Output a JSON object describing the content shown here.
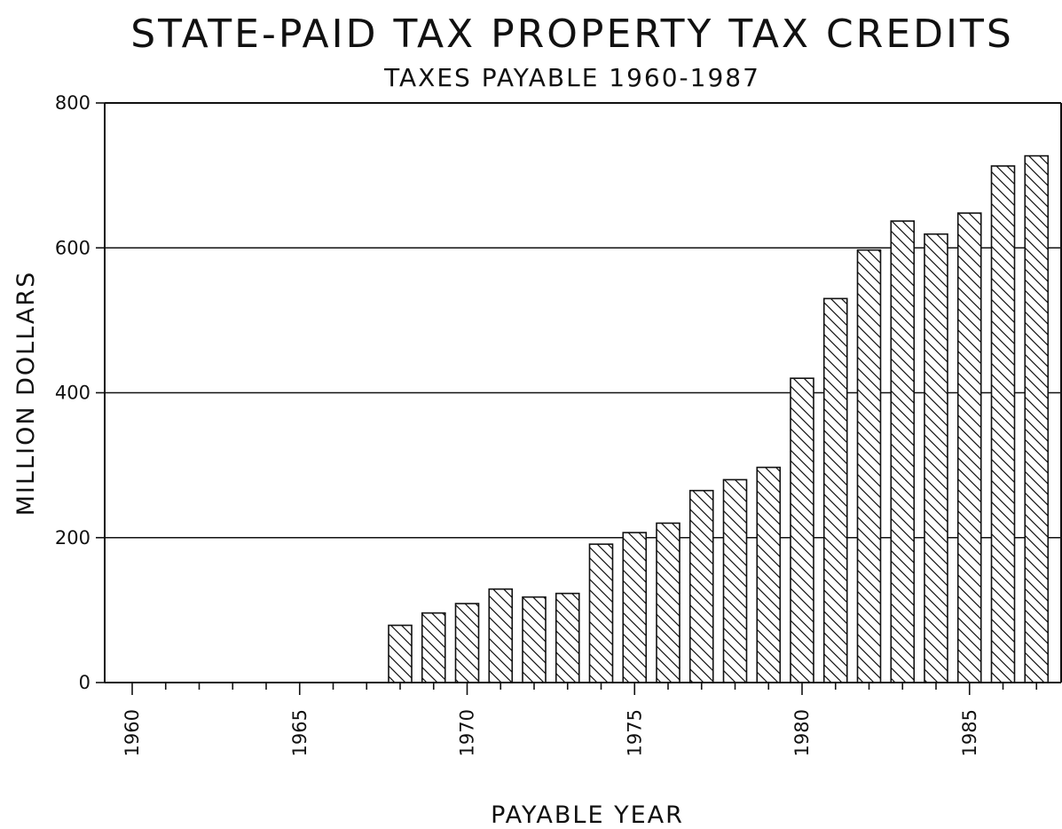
{
  "chart_data": {
    "type": "bar",
    "title": "STATE-PAID TAX PROPERTY TAX CREDITS",
    "subtitle": "TAXES PAYABLE 1960-1987",
    "xlabel": "PAYABLE YEAR",
    "ylabel": "MILLION DOLLARS",
    "ylim": [
      0,
      800
    ],
    "yticks": [
      0,
      200,
      400,
      600,
      800
    ],
    "xlim": [
      1960,
      1987
    ],
    "xticks": [
      1960,
      1965,
      1970,
      1975,
      1980,
      1985
    ],
    "grid": true,
    "categories": [
      1968,
      1969,
      1970,
      1971,
      1972,
      1973,
      1974,
      1975,
      1976,
      1977,
      1978,
      1979,
      1980,
      1981,
      1982,
      1983,
      1984,
      1985,
      1986,
      1987
    ],
    "values": [
      79,
      96,
      109,
      129,
      118,
      123,
      191,
      207,
      220,
      265,
      280,
      297,
      420,
      530,
      597,
      637,
      619,
      648,
      713,
      727
    ]
  }
}
